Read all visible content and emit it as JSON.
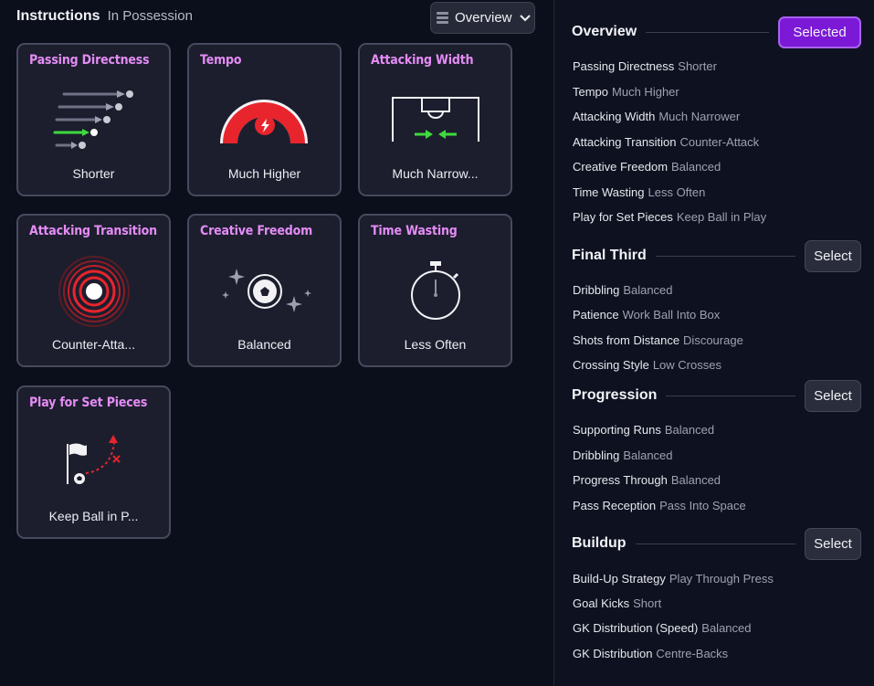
{
  "header": {
    "title": "Instructions",
    "subtitle": "In Possession"
  },
  "view_select": {
    "label": "Overview",
    "icon": "list-icon",
    "chevron": "chevron-down-icon"
  },
  "colors": {
    "accent_purple": "#7b19d6",
    "card_title": "#e58cf5",
    "red": "#e8242c",
    "green": "#3fd93f"
  },
  "cards": [
    {
      "title": "Passing Directness",
      "value": "Shorter",
      "icon": "passing-lines-icon"
    },
    {
      "title": "Tempo",
      "value": "Much Higher",
      "icon": "tempo-gauge-icon"
    },
    {
      "title": "Attacking Width",
      "value": "Much Narrow...",
      "icon": "pitch-width-icon"
    },
    {
      "title": "Attacking Transition",
      "value": "Counter-Atta...",
      "icon": "target-rings-icon"
    },
    {
      "title": "Creative Freedom",
      "value": "Balanced",
      "icon": "sparkle-ball-icon"
    },
    {
      "title": "Time Wasting",
      "value": "Less Often",
      "icon": "stopwatch-icon"
    },
    {
      "title": "Play for Set Pieces",
      "value": "Keep Ball in P...",
      "icon": "corner-flag-icon"
    }
  ],
  "panel": {
    "sections": [
      {
        "title": "Overview",
        "button": "Selected",
        "rows": [
          {
            "k": "Passing Directness",
            "v": "Shorter"
          },
          {
            "k": "Tempo",
            "v": "Much Higher"
          },
          {
            "k": "Attacking Width",
            "v": "Much Narrower"
          },
          {
            "k": "Attacking Transition",
            "v": "Counter-Attack"
          },
          {
            "k": "Creative Freedom",
            "v": "Balanced"
          },
          {
            "k": "Time Wasting",
            "v": "Less Often"
          },
          {
            "k": "Play for Set Pieces",
            "v": "Keep Ball in Play"
          }
        ]
      },
      {
        "title": "Final Third",
        "button": "Select",
        "rows": [
          {
            "k": "Dribbling",
            "v": "Balanced"
          },
          {
            "k": "Patience",
            "v": "Work Ball Into Box"
          },
          {
            "k": "Shots from Distance",
            "v": "Discourage"
          },
          {
            "k": "Crossing Style",
            "v": "Low Crosses"
          }
        ]
      },
      {
        "title": "Progression",
        "button": "Select",
        "rows": [
          {
            "k": "Supporting Runs",
            "v": "Balanced"
          },
          {
            "k": "Dribbling",
            "v": "Balanced"
          },
          {
            "k": "Progress Through",
            "v": "Balanced"
          },
          {
            "k": "Pass Reception",
            "v": "Pass Into Space"
          }
        ]
      },
      {
        "title": "Buildup",
        "button": "Select",
        "rows": [
          {
            "k": "Build-Up Strategy",
            "v": "Play Through Press"
          },
          {
            "k": "Goal Kicks",
            "v": "Short"
          },
          {
            "k": "GK Distribution (Speed)",
            "v": "Balanced"
          },
          {
            "k": "GK Distribution",
            "v": "Centre-Backs"
          }
        ]
      }
    ]
  }
}
